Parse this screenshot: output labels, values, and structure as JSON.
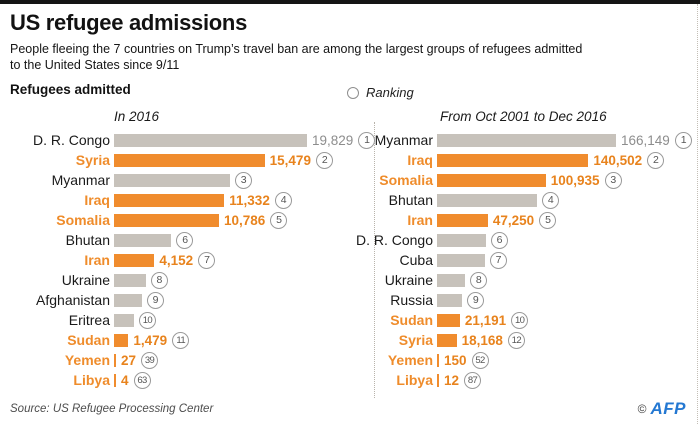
{
  "header": {
    "title": "US refugee admissions",
    "subtitle_line1": "People fleeing the 7 countries on Trump’s travel ban are among the largest groups of refugees admitted",
    "subtitle_line2": "to the United States since 9/11",
    "section_label": "Refugees admitted",
    "legend_label": "Ranking"
  },
  "colors": {
    "highlight_orange": "#f08c2e",
    "bar_gray": "#c7c2bb",
    "value_gray_text": "#8d8d8d",
    "afp_blue": "#2478d2"
  },
  "footer": {
    "source": "Source: US Refugee Processing Center",
    "credit_symbol": "©",
    "credit_text": "AFP"
  },
  "chart_data": [
    {
      "type": "bar",
      "orientation": "horizontal",
      "title": "In 2016",
      "xlim": [
        0,
        19829
      ],
      "highlight_encoding": "orange bars = countries on travel ban; gray = other countries; circled number = ranking",
      "rows": [
        {
          "country": "D. R. Congo",
          "value": 19829,
          "value_label": "19,829",
          "rank": 1,
          "ban": false,
          "estimated": false
        },
        {
          "country": "Syria",
          "value": 15479,
          "value_label": "15,479",
          "rank": 2,
          "ban": true,
          "estimated": false
        },
        {
          "country": "Myanmar",
          "value": 11900,
          "value_label": "",
          "rank": 3,
          "ban": false,
          "estimated": true
        },
        {
          "country": "Iraq",
          "value": 11332,
          "value_label": "11,332",
          "rank": 4,
          "ban": true,
          "estimated": false
        },
        {
          "country": "Somalia",
          "value": 10786,
          "value_label": "10,786",
          "rank": 5,
          "ban": true,
          "estimated": false
        },
        {
          "country": "Bhutan",
          "value": 5900,
          "value_label": "",
          "rank": 6,
          "ban": false,
          "estimated": true
        },
        {
          "country": "Iran",
          "value": 4152,
          "value_label": "4,152",
          "rank": 7,
          "ban": true,
          "estimated": false
        },
        {
          "country": "Ukraine",
          "value": 3250,
          "value_label": "",
          "rank": 8,
          "ban": false,
          "estimated": true
        },
        {
          "country": "Afghanistan",
          "value": 2850,
          "value_label": "",
          "rank": 9,
          "ban": false,
          "estimated": true
        },
        {
          "country": "Eritrea",
          "value": 2050,
          "value_label": "",
          "rank": 10,
          "ban": false,
          "estimated": true
        },
        {
          "country": "Sudan",
          "value": 1479,
          "value_label": "1,479",
          "rank": 11,
          "ban": true,
          "estimated": false
        },
        {
          "country": "Yemen",
          "value": 27,
          "value_label": "27",
          "rank": 39,
          "ban": true,
          "estimated": false
        },
        {
          "country": "Libya",
          "value": 4,
          "value_label": "4",
          "rank": 63,
          "ban": true,
          "estimated": false
        }
      ]
    },
    {
      "type": "bar",
      "orientation": "horizontal",
      "title": "From Oct 2001 to Dec 2016",
      "xlim": [
        0,
        166149
      ],
      "highlight_encoding": "orange bars = countries on travel ban; gray = other countries; circled number = ranking",
      "rows": [
        {
          "country": "Myanmar",
          "value": 166149,
          "value_label": "166,149",
          "rank": 1,
          "ban": false,
          "estimated": false
        },
        {
          "country": "Iraq",
          "value": 140502,
          "value_label": "140,502",
          "rank": 2,
          "ban": true,
          "estimated": false
        },
        {
          "country": "Somalia",
          "value": 100935,
          "value_label": "100,935",
          "rank": 3,
          "ban": true,
          "estimated": false
        },
        {
          "country": "Bhutan",
          "value": 92800,
          "value_label": "",
          "rank": 4,
          "ban": false,
          "estimated": true
        },
        {
          "country": "Iran",
          "value": 47250,
          "value_label": "47,250",
          "rank": 5,
          "ban": true,
          "estimated": false
        },
        {
          "country": "D. R. Congo",
          "value": 45200,
          "value_label": "",
          "rank": 6,
          "ban": false,
          "estimated": true
        },
        {
          "country": "Cuba",
          "value": 44300,
          "value_label": "",
          "rank": 7,
          "ban": false,
          "estimated": true
        },
        {
          "country": "Ukraine",
          "value": 26000,
          "value_label": "",
          "rank": 8,
          "ban": false,
          "estimated": true
        },
        {
          "country": "Russia",
          "value": 23200,
          "value_label": "",
          "rank": 9,
          "ban": false,
          "estimated": true
        },
        {
          "country": "Sudan",
          "value": 21191,
          "value_label": "21,191",
          "rank": 10,
          "ban": true,
          "estimated": false
        },
        {
          "country": "Syria",
          "value": 18168,
          "value_label": "18,168",
          "rank": 12,
          "ban": true,
          "estimated": false
        },
        {
          "country": "Yemen",
          "value": 150,
          "value_label": "150",
          "rank": 52,
          "ban": true,
          "estimated": false
        },
        {
          "country": "Libya",
          "value": 12,
          "value_label": "12",
          "rank": 87,
          "ban": true,
          "estimated": false
        }
      ]
    }
  ]
}
